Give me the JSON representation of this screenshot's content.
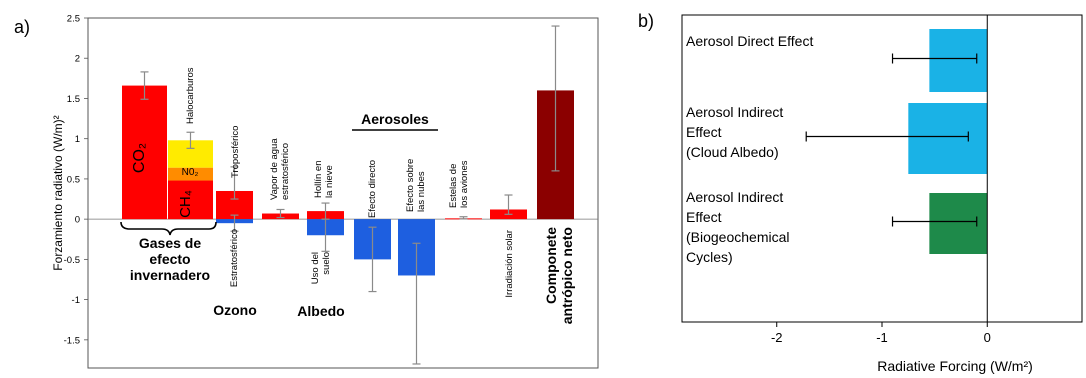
{
  "panel_labels": {
    "a": "a)",
    "b": "b)"
  },
  "chart_data": [
    {
      "type": "bar",
      "ylabel": "Forzamiento radiativo (W/m)²",
      "ylim": [
        -1.85,
        2.5
      ],
      "yticks": [
        2.5,
        2,
        1.5,
        1,
        0.5,
        0,
        -0.5,
        -1,
        -1.5
      ],
      "ytick_labels": [
        "2.5",
        "2",
        "1.5",
        "1",
        "0.5",
        "0",
        "-0.5",
        "-1",
        "-1.5"
      ],
      "bars": [
        {
          "name": "CO2",
          "bottom": 0,
          "top": 1.66,
          "color": "#ff0000",
          "err_low": 1.49,
          "err_high": 1.83
        },
        {
          "name": "CH4",
          "bottom": 0,
          "top": 0.48,
          "color": "#ff0000"
        },
        {
          "name": "N2O",
          "bottom": 0.48,
          "top": 0.64,
          "color": "#ff8c00"
        },
        {
          "name": "Halocarburos",
          "bottom": 0.64,
          "top": 0.98,
          "color": "#ffeb00",
          "err_low": 0.88,
          "err_high": 1.08
        },
        {
          "name": "Troposférico",
          "bottom": 0,
          "top": 0.35,
          "color": "#ff0000",
          "err_low": 0.25,
          "err_high": 0.65
        },
        {
          "name": "Estratosférico",
          "bottom": -0.05,
          "top": 0,
          "color": "#1e5fe0",
          "err_low": -0.15,
          "err_high": 0.05
        },
        {
          "name": "Vapor de agua estratosférico",
          "bottom": 0,
          "top": 0.07,
          "color": "#ff0000",
          "err_low": 0.02,
          "err_high": 0.12
        },
        {
          "name": "Hollín en la nieve",
          "bottom": 0,
          "top": 0.1,
          "color": "#ff0000",
          "err_low": 0.0,
          "err_high": 0.2
        },
        {
          "name": "Uso del suelo",
          "bottom": -0.2,
          "top": 0,
          "color": "#1e5fe0",
          "err_low": -0.4,
          "err_high": 0.0
        },
        {
          "name": "Efecto directo",
          "bottom": -0.5,
          "top": 0,
          "color": "#1e5fe0",
          "err_low": -0.9,
          "err_high": -0.1
        },
        {
          "name": "Efecto sobre las nubes",
          "bottom": -0.7,
          "top": 0,
          "color": "#1e5fe0",
          "err_low": -1.8,
          "err_high": -0.3
        },
        {
          "name": "Estelas de los aviones",
          "bottom": 0,
          "top": 0.01,
          "color": "#ff0000",
          "err_low": 0.003,
          "err_high": 0.03
        },
        {
          "name": "Irradiación solar",
          "bottom": 0,
          "top": 0.12,
          "color": "#ff0000",
          "err_low": 0.06,
          "err_high": 0.3
        },
        {
          "name": "Componete antrópico neto",
          "bottom": 0,
          "top": 1.6,
          "color": "#8b0000",
          "err_low": 0.6,
          "err_high": 2.4
        }
      ],
      "bar_texts": {
        "co2": "CO₂",
        "ch4": "CH₄",
        "n2o": "N0₂"
      },
      "bar_labels": {
        "halocarburos": "Halocarburos",
        "troposferico": "Troposférico",
        "vapor": [
          "Vapor de agua",
          "estratosférico"
        ],
        "hollin": [
          "Hollín en",
          "la nieve"
        ],
        "efecto_directo": "Efecto directo",
        "efecto_nubes": [
          "Efecto sobre",
          "las nubes"
        ],
        "estelas": [
          "Estelas de",
          "los aviones"
        ],
        "estratosferico": "Estratosférico",
        "uso_suelo": [
          "Uso del",
          "suelo"
        ],
        "irradiacion": "Irradiación solar"
      },
      "group_labels": {
        "gases": [
          "Gases de",
          "efecto",
          "invernadero"
        ],
        "ozono": "Ozono",
        "albedo": "Albedo",
        "aerosoles": "Aerosoles",
        "neto": [
          "Componete",
          "antrópico neto"
        ]
      }
    },
    {
      "type": "bar",
      "orientation": "horizontal",
      "xlabel": "Radiative Forcing (W/m²)",
      "xlim": [
        -2.9,
        0.9
      ],
      "xticks": [
        -2,
        -1,
        0
      ],
      "xtick_labels": [
        "-2",
        "-1",
        "0"
      ],
      "categories": [
        [
          "Aerosol Direct Effect"
        ],
        [
          "Aerosol Indirect",
          "Effect",
          "(Cloud Albedo)"
        ],
        [
          "Aerosol Indirect",
          "Effect",
          "(Biogeochemical",
          "Cycles)"
        ]
      ],
      "values": [
        -0.55,
        -0.75,
        -0.55
      ],
      "err_low": [
        -0.9,
        -1.72,
        -0.9
      ],
      "err_high": [
        -0.1,
        -0.18,
        -0.1
      ],
      "colors": [
        "#1ab2e6",
        "#1ab2e6",
        "#1e8a4a"
      ]
    }
  ]
}
